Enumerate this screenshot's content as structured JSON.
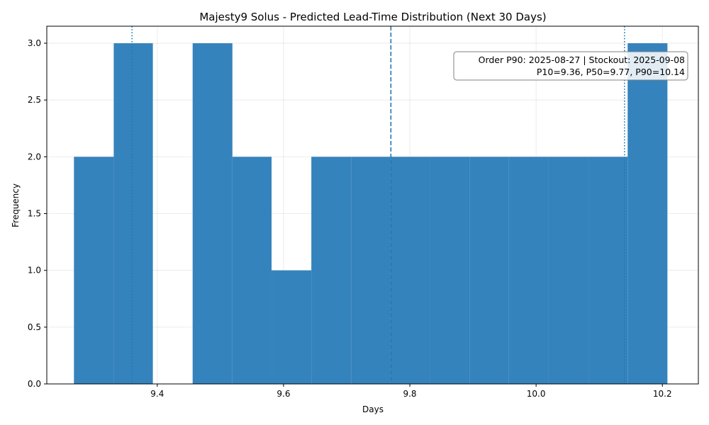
{
  "chart_data": {
    "type": "bar",
    "title": "Majesty9 Solus - Predicted Lead-Time Distribution (Next 30 Days)",
    "xlabel": "Days",
    "ylabel": "Frequency",
    "xlim": [
      9.225,
      10.257
    ],
    "ylim": [
      0,
      3.15
    ],
    "xticks": [
      9.4,
      9.6,
      9.8,
      10.0,
      10.2
    ],
    "xtick_labels": [
      "9.4",
      "9.6",
      "9.8",
      "10.0",
      "10.2"
    ],
    "yticks": [
      0,
      0.5,
      1,
      1.5,
      2,
      2.5,
      3
    ],
    "ytick_labels": [
      "0.0",
      "0.5",
      "1.0",
      "1.5",
      "2.0",
      "2.5",
      "3.0"
    ],
    "grid": true,
    "bar_color": "#3583bc",
    "line_color": "#1f77b4",
    "bins": [
      {
        "start": 9.268,
        "end": 9.331,
        "count": 2
      },
      {
        "start": 9.331,
        "end": 9.393,
        "count": 3
      },
      {
        "start": 9.393,
        "end": 9.456,
        "count": 0
      },
      {
        "start": 9.456,
        "end": 9.519,
        "count": 3
      },
      {
        "start": 9.519,
        "end": 9.581,
        "count": 2
      },
      {
        "start": 9.581,
        "end": 9.644,
        "count": 1
      },
      {
        "start": 9.644,
        "end": 9.707,
        "count": 2
      },
      {
        "start": 9.707,
        "end": 9.769,
        "count": 2
      },
      {
        "start": 9.769,
        "end": 9.832,
        "count": 2
      },
      {
        "start": 9.832,
        "end": 9.895,
        "count": 2
      },
      {
        "start": 9.895,
        "end": 9.957,
        "count": 2
      },
      {
        "start": 9.957,
        "end": 10.02,
        "count": 2
      },
      {
        "start": 10.02,
        "end": 10.083,
        "count": 2
      },
      {
        "start": 10.083,
        "end": 10.145,
        "count": 2
      },
      {
        "start": 10.145,
        "end": 10.208,
        "count": 3
      }
    ],
    "reference_lines": [
      {
        "x": 9.36,
        "style": "dotted"
      },
      {
        "x": 9.77,
        "style": "dashed"
      },
      {
        "x": 10.14,
        "style": "dotted"
      }
    ],
    "annotation": {
      "line1": "Order P90: 2025-08-27 | Stockout: 2025-09-08",
      "line2": "P10=9.36, P50=9.77, P90=10.14"
    }
  }
}
